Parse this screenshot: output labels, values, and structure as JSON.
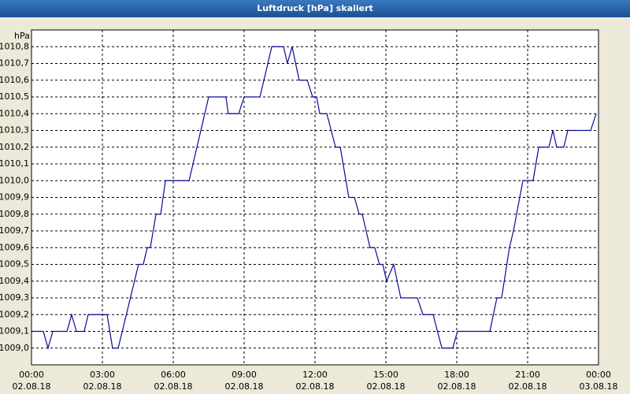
{
  "chart_data": {
    "type": "line",
    "title": "Luftdruck [hPa] skaliert",
    "y_label": "hPa",
    "x": [
      0,
      0.5,
      0.7,
      0.9,
      1.5,
      1.7,
      1.9,
      2.23,
      2.4,
      3.2,
      3.43,
      3.67,
      4.53,
      4.73,
      4.9,
      5.03,
      5.27,
      5.47,
      5.67,
      6.67,
      7.5,
      8.23,
      8.33,
      8.77,
      9.0,
      9.67,
      10.17,
      10.67,
      10.83,
      11.03,
      11.33,
      11.67,
      11.9,
      12.07,
      12.2,
      12.5,
      12.87,
      13.07,
      13.43,
      13.67,
      13.87,
      14.0,
      14.33,
      14.53,
      14.73,
      14.87,
      15.03,
      15.33,
      15.63,
      16.33,
      16.57,
      17.0,
      17.37,
      17.83,
      18.03,
      19.4,
      19.7,
      19.9,
      20.23,
      20.4,
      20.8,
      21.23,
      21.47,
      21.9,
      22.07,
      22.23,
      22.53,
      22.7,
      23.67,
      23.9
    ],
    "series": [
      {
        "name": "Luftdruck",
        "color": "#0a0a9a",
        "values": [
          1009.1,
          1009.1,
          1009.0,
          1009.1,
          1009.1,
          1009.2,
          1009.1,
          1009.1,
          1009.2,
          1009.2,
          1009.0,
          1009.0,
          1009.5,
          1009.5,
          1009.6,
          1009.6,
          1009.8,
          1009.8,
          1010.0,
          1010.0,
          1010.5,
          1010.5,
          1010.4,
          1010.4,
          1010.5,
          1010.5,
          1010.8,
          1010.8,
          1010.7,
          1010.8,
          1010.6,
          1010.6,
          1010.5,
          1010.5,
          1010.4,
          1010.4,
          1010.2,
          1010.2,
          1009.9,
          1009.9,
          1009.8,
          1009.8,
          1009.6,
          1009.6,
          1009.5,
          1009.5,
          1009.4,
          1009.5,
          1009.3,
          1009.3,
          1009.2,
          1009.2,
          1009.0,
          1009.0,
          1009.1,
          1009.1,
          1009.3,
          1009.3,
          1009.6,
          1009.7,
          1010.0,
          1010.0,
          1010.2,
          1010.2,
          1010.3,
          1010.2,
          1010.2,
          1010.3,
          1010.3,
          1010.4
        ]
      }
    ],
    "xlim": [
      0,
      24
    ],
    "xticks": [
      {
        "value": 0,
        "label": "00:00"
      },
      {
        "value": 3,
        "label": "03:00"
      },
      {
        "value": 6,
        "label": "06:00"
      },
      {
        "value": 9,
        "label": "09:00"
      },
      {
        "value": 12,
        "label": "12:00"
      },
      {
        "value": 15,
        "label": "15:00"
      },
      {
        "value": 18,
        "label": "18:00"
      },
      {
        "value": 21,
        "label": "21:00"
      },
      {
        "value": 24,
        "label": "00:00"
      }
    ],
    "xtick_dates": [
      "02.08.18",
      "02.08.18",
      "02.08.18",
      "02.08.18",
      "02.08.18",
      "02.08.18",
      "02.08.18",
      "02.08.18",
      "03.08.18"
    ],
    "ylim": [
      1008.9,
      1010.9
    ],
    "yticks": [
      {
        "value": 1009.0,
        "label": "1009,0"
      },
      {
        "value": 1009.1,
        "label": "1009,1"
      },
      {
        "value": 1009.2,
        "label": "1009,2"
      },
      {
        "value": 1009.3,
        "label": "1009,3"
      },
      {
        "value": 1009.4,
        "label": "1009,4"
      },
      {
        "value": 1009.5,
        "label": "1009,5"
      },
      {
        "value": 1009.6,
        "label": "1009,6"
      },
      {
        "value": 1009.7,
        "label": "1009,7"
      },
      {
        "value": 1009.8,
        "label": "1009,8"
      },
      {
        "value": 1009.9,
        "label": "1009,9"
      },
      {
        "value": 1010.0,
        "label": "1010,0"
      },
      {
        "value": 1010.1,
        "label": "1010,1"
      },
      {
        "value": 1010.2,
        "label": "1010,2"
      },
      {
        "value": 1010.3,
        "label": "1010,3"
      },
      {
        "value": 1010.4,
        "label": "1010,4"
      },
      {
        "value": 1010.5,
        "label": "1010,5"
      },
      {
        "value": 1010.6,
        "label": "1010,6"
      },
      {
        "value": 1010.7,
        "label": "1010,7"
      },
      {
        "value": 1010.8,
        "label": "1010,8"
      }
    ],
    "grid": true
  }
}
